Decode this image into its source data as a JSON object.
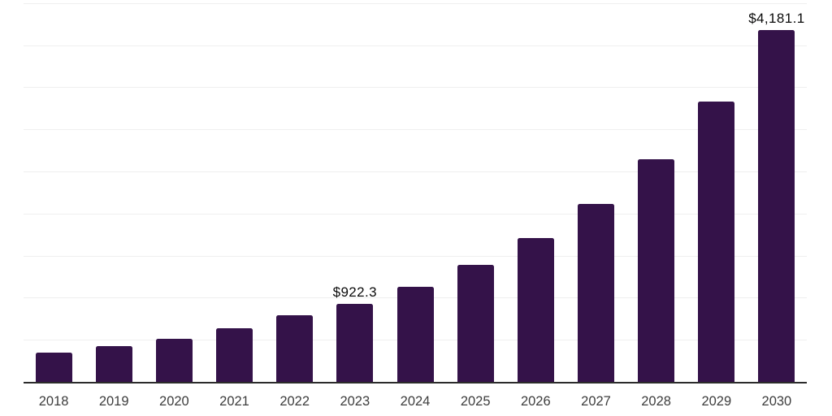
{
  "chart_data": {
    "type": "bar",
    "title": "",
    "xlabel": "",
    "ylabel": "",
    "categories": [
      "2018",
      "2019",
      "2020",
      "2021",
      "2022",
      "2023",
      "2024",
      "2025",
      "2026",
      "2027",
      "2028",
      "2029",
      "2030"
    ],
    "values": [
      347,
      425,
      514,
      637,
      789,
      922.3,
      1132,
      1393,
      1711,
      2117,
      2645,
      3330,
      4181.1
    ],
    "data_labels": {
      "2023": "$922.3",
      "2030": "$4,181.1"
    },
    "ylim": [
      0,
      4536
    ],
    "gridline_step": 500,
    "gridline_max": 4500,
    "grid": true,
    "legend": false,
    "y_axis_tick_labels_visible": false,
    "colors": {
      "bar": "#341249",
      "axis_line": "#2b2b2b",
      "gridline": "#efefef",
      "x_tick_label": "#3d3d3d",
      "data_label": "#0a0a0a",
      "background": "#ffffff"
    }
  }
}
